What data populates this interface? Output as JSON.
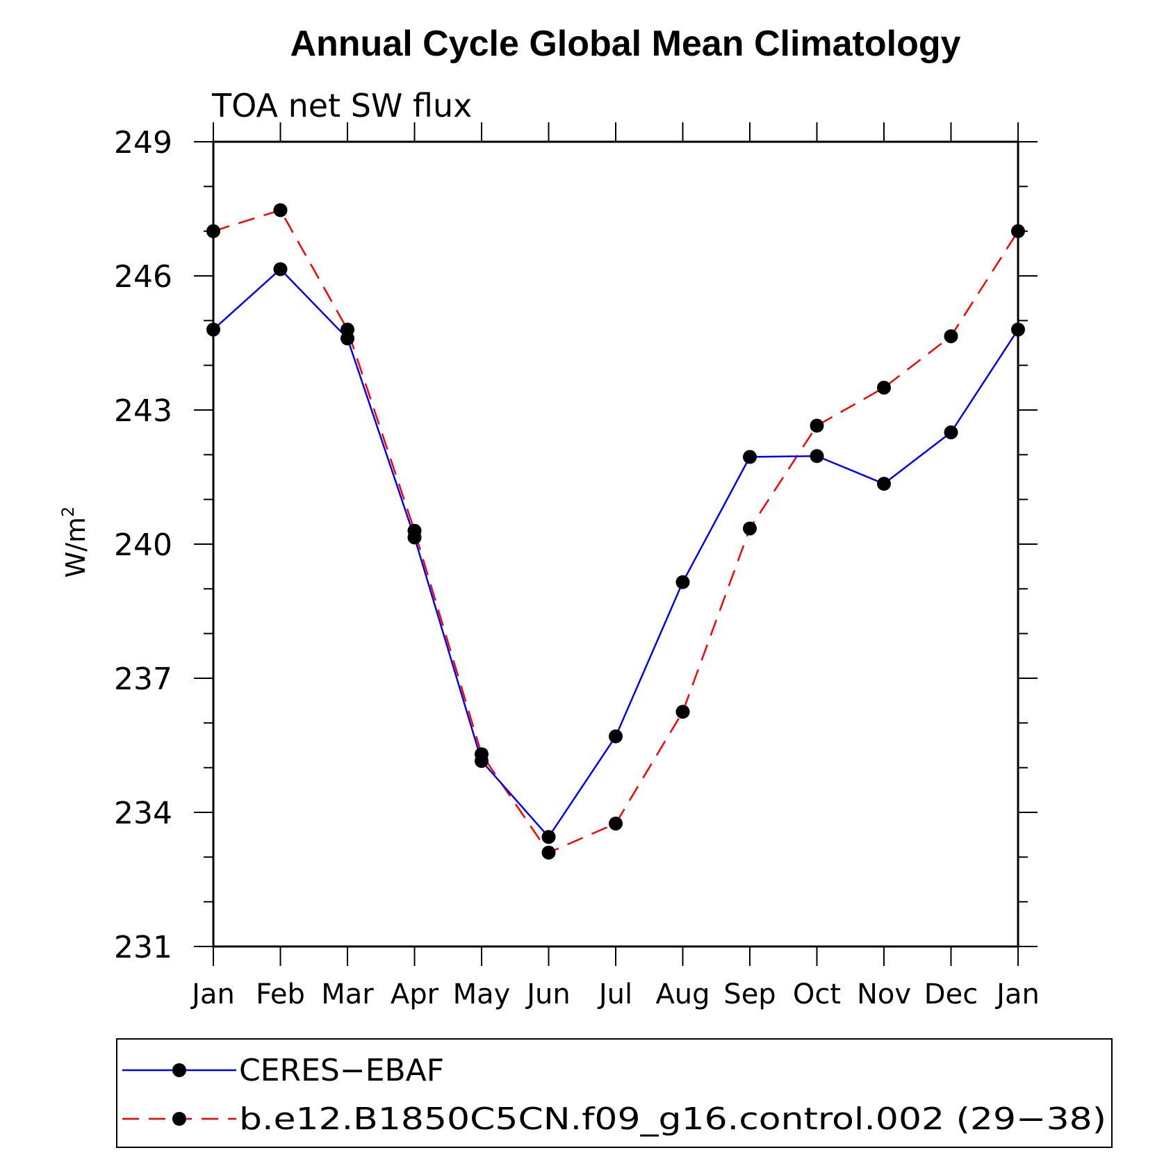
{
  "chart_data": {
    "type": "line",
    "title": "Annual Cycle Global Mean Climatology",
    "subtitle": "TOA net SW flux",
    "ylabel": "W/m",
    "ylabel_superscript": "2",
    "ylim": [
      231,
      249
    ],
    "y_major_ticks": [
      "231",
      "234",
      "237",
      "240",
      "243",
      "246",
      "249"
    ],
    "y_minor_step": 1,
    "categories": [
      "Jan",
      "Feb",
      "Mar",
      "Apr",
      "May",
      "Jun",
      "Jul",
      "Aug",
      "Sep",
      "Oct",
      "Nov",
      "Dec",
      "Jan"
    ],
    "series": [
      {
        "name": "CERES−EBAF",
        "color": "#0000ff",
        "dash": "solid",
        "marker": "filled-circle",
        "values": [
          244.8,
          246.15,
          244.6,
          240.15,
          235.15,
          233.45,
          235.7,
          239.15,
          241.95,
          241.97,
          241.35,
          242.5,
          244.8
        ]
      },
      {
        "name": "b.e12.B1850C5CN.f09_g16.control.002 (29−38)",
        "color": "#ff0000",
        "dash": "dashed",
        "marker": "filled-circle",
        "values": [
          247.0,
          247.47,
          244.8,
          240.3,
          235.3,
          233.1,
          233.75,
          236.25,
          240.35,
          242.65,
          243.5,
          244.65,
          247.0
        ]
      }
    ],
    "legend_position": "bottom"
  }
}
